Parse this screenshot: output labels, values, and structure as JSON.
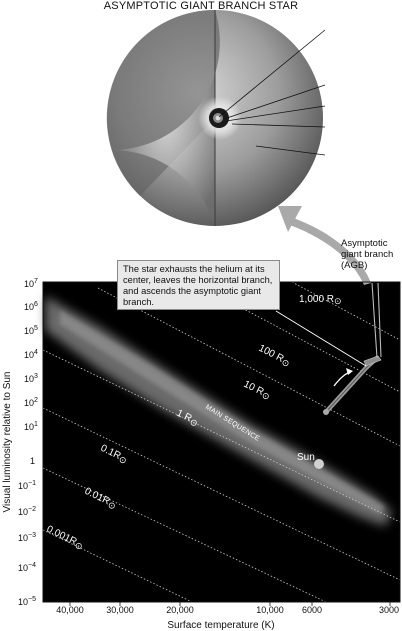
{
  "diagram": {
    "title": "ASYMPTOTIC GIANT BRANCH STAR",
    "callout": "The star exhausts the helium at its center, leaves the horizontal branch, and ascends the asymptotic giant branch.",
    "agb_label": [
      "Asymptotic",
      "giant branch",
      "(AGB)"
    ],
    "main_sequence_label": "MAIN SEQUENCE",
    "sun_label": "Sun",
    "radius_labels": [
      "1,000 R",
      "100 R",
      "10 R",
      "1 R",
      "0.1R",
      "0.01R",
      "0.001R"
    ],
    "radius_symbol": "⊙"
  },
  "chart_data": {
    "type": "scatter",
    "xlabel": "Surface temperature (K)",
    "ylabel": "Visual luminosity relative to Sun",
    "x_ticks": [
      "40,000",
      "30,000",
      "20,000",
      "10,000",
      "6000",
      "3000"
    ],
    "y_ticks": [
      {
        "base": "10",
        "exp": "7"
      },
      {
        "base": "10",
        "exp": "6"
      },
      {
        "base": "10",
        "exp": "5"
      },
      {
        "base": "10",
        "exp": "4"
      },
      {
        "base": "10",
        "exp": "3"
      },
      {
        "base": "10",
        "exp": "2"
      },
      {
        "base": "10",
        "exp": "1"
      },
      {
        "base": "1",
        "exp": ""
      },
      {
        "base": "10",
        "exp": "−1"
      },
      {
        "base": "10",
        "exp": "−2"
      },
      {
        "base": "10",
        "exp": "−3"
      },
      {
        "base": "10",
        "exp": "−4"
      },
      {
        "base": "10",
        "exp": "−5"
      }
    ],
    "points": [
      {
        "name": "Sun",
        "temperature": 5800,
        "luminosity": 1
      }
    ],
    "x_scale": "log-reversed",
    "y_scale": "log"
  },
  "colors": {
    "plot_background": "#000000",
    "main_sequence": "#8c8c8c",
    "agb_track": "#9a9a9a",
    "arrow": "#a9a9a9",
    "callout_background": "#e9e9e9"
  }
}
